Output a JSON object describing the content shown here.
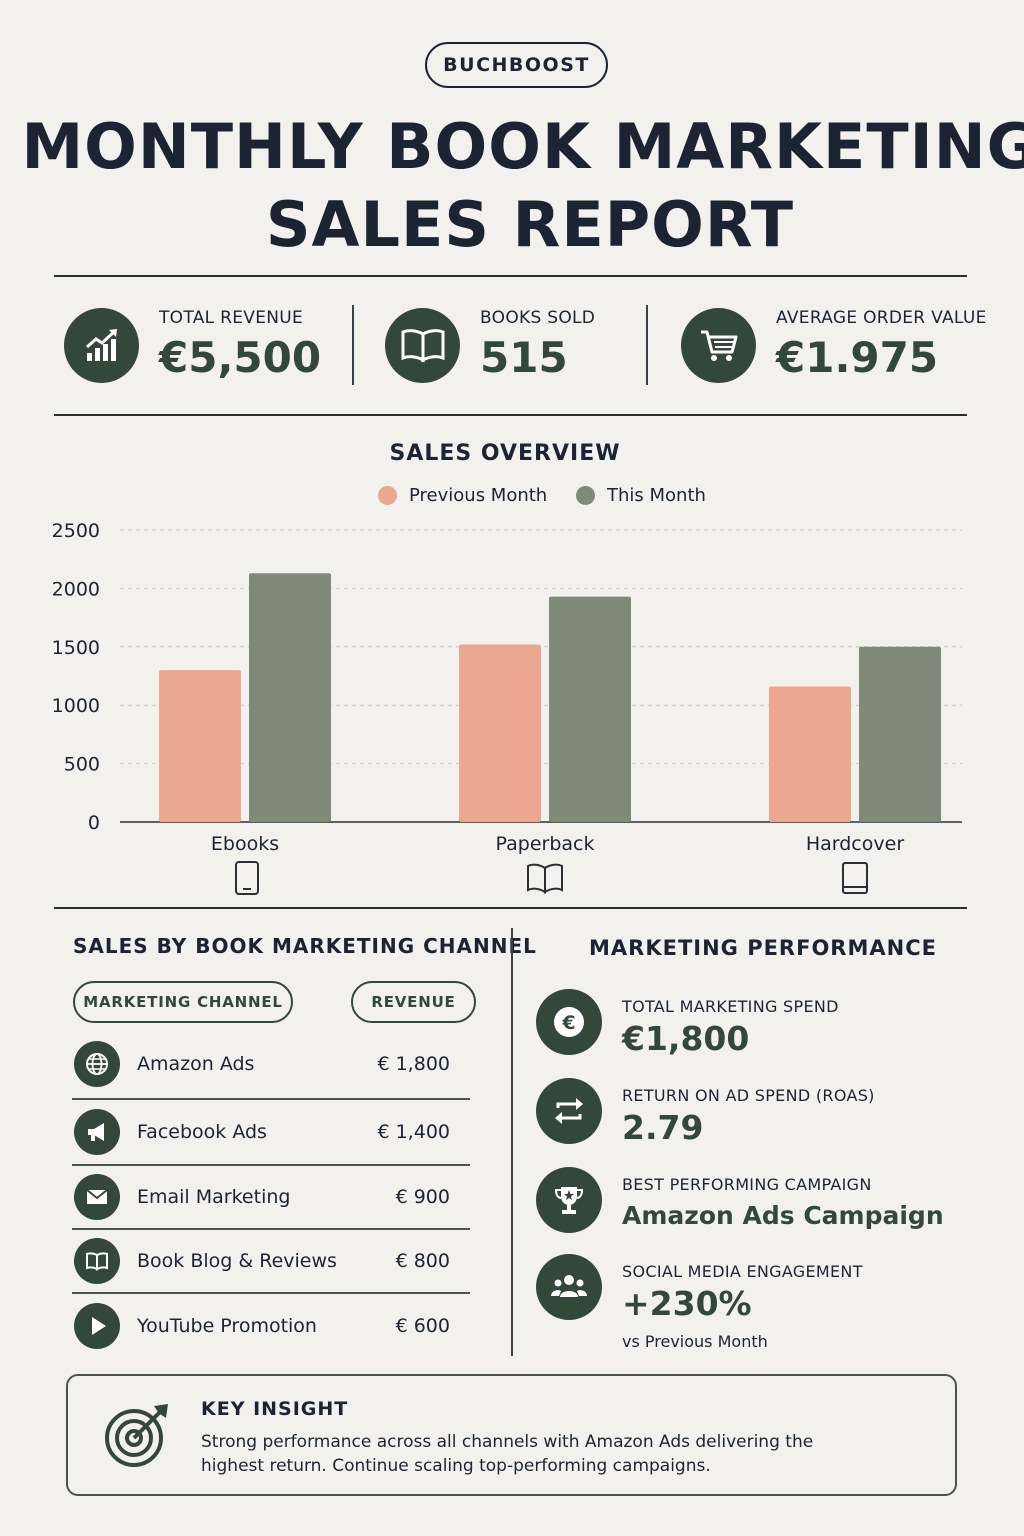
{
  "brand": "BUCHBOOST",
  "title_line1": "MONTHLY BOOK MARKETING",
  "title_line2": "SALES REPORT",
  "kpis": [
    {
      "label": "TOTAL REVENUE",
      "value": "€5,500",
      "icon": "growth-chart-icon"
    },
    {
      "label": "BOOKS SOLD",
      "value": "515",
      "icon": "open-book-icon"
    },
    {
      "label": "AVERAGE ORDER VALUE",
      "value": "€1.975",
      "icon": "shopping-cart-icon"
    }
  ],
  "overview_title": "SALES OVERVIEW",
  "colors": {
    "previous": "#eba78f",
    "current": "#7f8a79",
    "dark": "#34473b"
  },
  "chart_data": {
    "type": "bar",
    "title": "SALES OVERVIEW",
    "categories": [
      "Ebooks",
      "Paperback",
      "Hardcover"
    ],
    "category_icons": [
      "tablet-icon",
      "open-book-icon",
      "hardcover-book-icon"
    ],
    "series": [
      {
        "name": "Previous Month",
        "values": [
          1300,
          1520,
          1160
        ]
      },
      {
        "name": "This Month",
        "values": [
          2130,
          1930,
          1500
        ]
      }
    ],
    "ylim": [
      0,
      2500
    ],
    "yticks": [
      0,
      500,
      1000,
      1500,
      2000,
      2500
    ],
    "grid": true,
    "legend": "top-center"
  },
  "channels": {
    "title": "SALES BY BOOK MARKETING CHANNEL",
    "col_channel": "MARKETING CHANNEL",
    "col_revenue": "REVENUE",
    "rows": [
      {
        "name": "Amazon Ads",
        "revenue": "€ 1,800",
        "icon": "globe-icon"
      },
      {
        "name": "Facebook Ads",
        "revenue": "€ 1,400",
        "icon": "megaphone-icon"
      },
      {
        "name": "Email Marketing",
        "revenue": "€ 900",
        "icon": "envelope-icon"
      },
      {
        "name": "Book Blog & Reviews",
        "revenue": "€ 800",
        "icon": "open-book-icon"
      },
      {
        "name": "YouTube Promotion",
        "revenue": "€ 600",
        "icon": "play-icon"
      }
    ]
  },
  "performance": {
    "title": "MARKETING PERFORMANCE",
    "items": [
      {
        "label": "TOTAL MARKETING SPEND",
        "value": "€1,800",
        "icon": "euro-icon"
      },
      {
        "label": "RETURN ON AD SPEND (ROAS)",
        "value": "2.79",
        "icon": "exchange-arrows-icon"
      },
      {
        "label": "BEST PERFORMING CAMPAIGN",
        "value": "Amazon Ads Campaign",
        "icon": "trophy-icon"
      },
      {
        "label": "SOCIAL MEDIA ENGAGEMENT",
        "value": "+230%",
        "sub": "vs Previous Month",
        "icon": "people-icon"
      }
    ]
  },
  "insight": {
    "title": "KEY INSIGHT",
    "text": "Strong performance across all channels with Amazon Ads delivering the highest return. Continue scaling top-performing campaigns."
  }
}
